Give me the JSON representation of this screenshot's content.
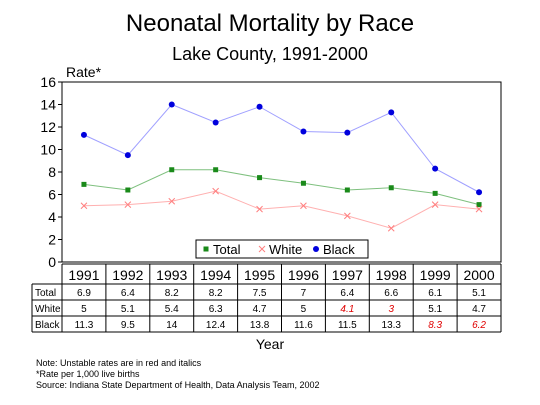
{
  "chart_data": {
    "type": "line",
    "title": "Neonatal Mortality by Race",
    "subtitle": "Lake County, 1991-2000",
    "ylabel": "Rate*",
    "xlabel": "Year",
    "ylim": [
      0,
      16
    ],
    "yticks": [
      0,
      2,
      4,
      6,
      8,
      10,
      12,
      14,
      16
    ],
    "categories": [
      "1991",
      "1992",
      "1993",
      "1994",
      "1995",
      "1996",
      "1997",
      "1998",
      "1999",
      "2000"
    ],
    "legend_position": "bottom-center",
    "grid": false,
    "series": [
      {
        "name": "Total",
        "color": "#1a8a1a",
        "marker": "square",
        "values": [
          6.9,
          6.4,
          8.2,
          8.2,
          7.5,
          7,
          6.4,
          6.6,
          6.1,
          5.1
        ],
        "labels": [
          "6.9",
          "6.4",
          "8.2",
          "8.2",
          "7.5",
          "7",
          "6.4",
          "6.6",
          "6.1",
          "5.1"
        ],
        "unstable": [
          false,
          false,
          false,
          false,
          false,
          false,
          false,
          false,
          false,
          false
        ]
      },
      {
        "name": "White",
        "color": "#ff7f7f",
        "marker": "x",
        "values": [
          5,
          5.1,
          5.4,
          6.3,
          4.7,
          5,
          4.1,
          3,
          5.1,
          4.7
        ],
        "labels": [
          "5",
          "5.1",
          "5.4",
          "6.3",
          "4.7",
          "5",
          "4.1",
          "3",
          "5.1",
          "4.7"
        ],
        "unstable": [
          false,
          false,
          false,
          false,
          false,
          false,
          true,
          true,
          false,
          false
        ]
      },
      {
        "name": "Black",
        "color": "#0000dd",
        "marker": "circle",
        "values": [
          11.3,
          9.5,
          14,
          12.4,
          13.8,
          11.6,
          11.5,
          13.3,
          8.3,
          6.2
        ],
        "labels": [
          "11.3",
          "9.5",
          "14",
          "12.4",
          "13.8",
          "11.6",
          "11.5",
          "13.3",
          "8.3",
          "6.2"
        ],
        "unstable": [
          false,
          false,
          false,
          false,
          false,
          false,
          false,
          false,
          true,
          true
        ]
      }
    ]
  },
  "notes": [
    "Note:  Unstable rates are in red and italics",
    "*Rate per 1,000 live births",
    "Source:  Indiana State Department of Health, Data Analysis Team, 2002"
  ],
  "colors": {
    "unstable_text": "#e00000",
    "line_total": "#7fc07f",
    "line_white": "#ffb0b0",
    "line_black": "#a0a0ff"
  }
}
